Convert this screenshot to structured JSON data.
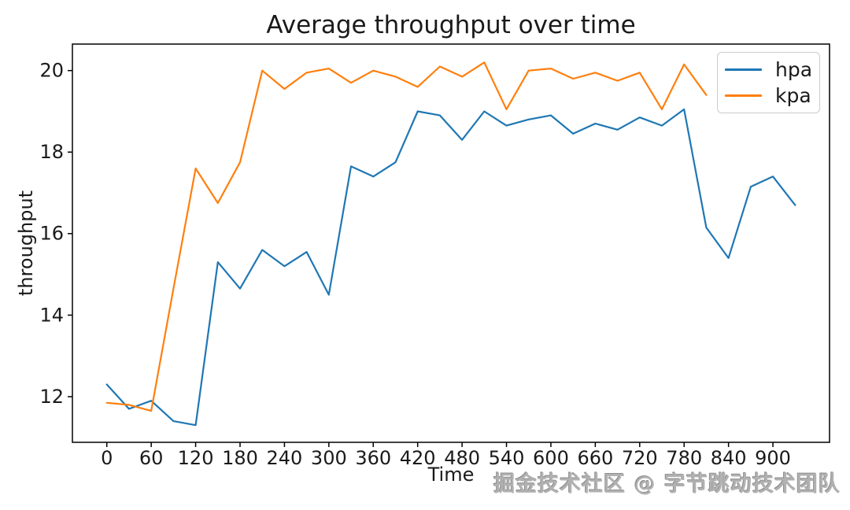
{
  "chart_data": {
    "type": "line",
    "title": "Average throughput over time",
    "xlabel": "Time",
    "ylabel": "throughput",
    "xlim": [
      -46.5,
      976.5
    ],
    "ylim": [
      10.88,
      20.65
    ],
    "x_ticks": [
      0,
      60,
      120,
      180,
      240,
      300,
      360,
      420,
      480,
      540,
      600,
      660,
      720,
      780,
      840,
      900
    ],
    "y_ticks": [
      12,
      14,
      16,
      18,
      20
    ],
    "grid": false,
    "legend_position": "upper right",
    "series": [
      {
        "name": "hpa",
        "color": "#1f77b4",
        "x": [
          0,
          30,
          60,
          90,
          120,
          150,
          180,
          210,
          240,
          270,
          300,
          330,
          360,
          390,
          420,
          450,
          480,
          510,
          540,
          570,
          600,
          630,
          660,
          690,
          720,
          750,
          780,
          810,
          840,
          870,
          900,
          930
        ],
        "values": [
          12.3,
          11.7,
          11.9,
          11.4,
          11.3,
          15.3,
          14.65,
          15.6,
          15.2,
          15.55,
          14.5,
          17.65,
          17.4,
          17.75,
          19.0,
          18.9,
          18.3,
          19.0,
          18.65,
          18.8,
          18.9,
          18.45,
          18.7,
          18.55,
          18.85,
          18.65,
          19.05,
          16.15,
          15.4,
          17.15,
          17.4,
          16.7
        ]
      },
      {
        "name": "kpa",
        "color": "#ff7f0e",
        "x": [
          0,
          30,
          60,
          90,
          120,
          150,
          180,
          210,
          240,
          270,
          300,
          330,
          360,
          390,
          420,
          450,
          480,
          510,
          540,
          570,
          600,
          630,
          660,
          690,
          720,
          750,
          780,
          810
        ],
        "values": [
          11.85,
          11.8,
          11.65,
          14.65,
          17.6,
          16.75,
          17.75,
          20.0,
          19.55,
          19.95,
          20.05,
          19.7,
          20.0,
          19.85,
          19.6,
          20.1,
          19.85,
          20.2,
          19.05,
          20.0,
          20.05,
          19.8,
          19.95,
          19.75,
          19.95,
          19.05,
          20.15,
          19.4
        ]
      }
    ]
  },
  "watermark": {
    "text": "掘金技术社区 @ 字节跳动技术团队"
  }
}
